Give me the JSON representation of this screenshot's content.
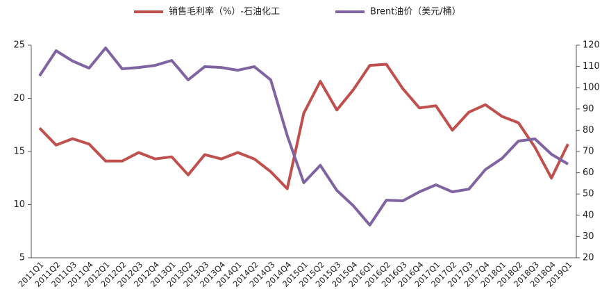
{
  "chart_data": {
    "type": "line",
    "categories": [
      "2011Q1",
      "2011Q2",
      "2011Q3",
      "2011Q4",
      "2012Q1",
      "2012Q2",
      "2012Q3",
      "2012Q4",
      "2013Q1",
      "2013Q2",
      "2013Q3",
      "2013Q4",
      "2014Q1",
      "2014Q2",
      "2014Q3",
      "2014Q4",
      "2015Q1",
      "2015Q2",
      "2015Q3",
      "2015Q4",
      "2016Q1",
      "2016Q2",
      "2016Q3",
      "2016Q4",
      "2017Q1",
      "2017Q2",
      "2017Q3",
      "2017Q4",
      "2018Q1",
      "2018Q2",
      "2018Q3",
      "2018Q4",
      "2019Q1"
    ],
    "series": [
      {
        "name": "销售毛利率（%）-石油化工",
        "color": "#c0504d",
        "values": [
          17.2,
          15.6,
          16.2,
          15.7,
          14.1,
          14.1,
          14.9,
          14.3,
          14.5,
          12.8,
          14.7,
          14.3,
          14.9,
          14.3,
          13.1,
          11.5,
          18.6,
          21.6,
          18.9,
          20.8,
          23.1,
          23.2,
          20.9,
          19.1,
          19.3,
          17.0,
          18.7,
          19.4,
          18.3,
          17.7,
          15.4,
          12.5,
          15.7
        ]
      },
      {
        "name": "Brent油价（美元/桶）",
        "color": "#8064a2",
        "axis": "y2",
        "values": [
          105.6,
          117.4,
          112.5,
          109.2,
          118.7,
          108.9,
          109.5,
          110.5,
          112.8,
          103.7,
          109.9,
          109.5,
          108.2,
          109.9,
          103.7,
          77.5,
          55.3,
          63.5,
          51.7,
          44.5,
          35.4,
          47.1,
          46.8,
          51.0,
          54.3,
          51.0,
          52.3,
          61.5,
          66.7,
          74.9,
          75.9,
          68.7,
          64.1
        ]
      }
    ],
    "ylim": [
      5,
      25
    ],
    "yticks": [
      5,
      10,
      15,
      20,
      25
    ],
    "y2lim": [
      20,
      120
    ],
    "y2ticks": [
      20,
      30,
      40,
      50,
      60,
      70,
      80,
      90,
      100,
      110,
      120
    ],
    "legend": "top"
  }
}
